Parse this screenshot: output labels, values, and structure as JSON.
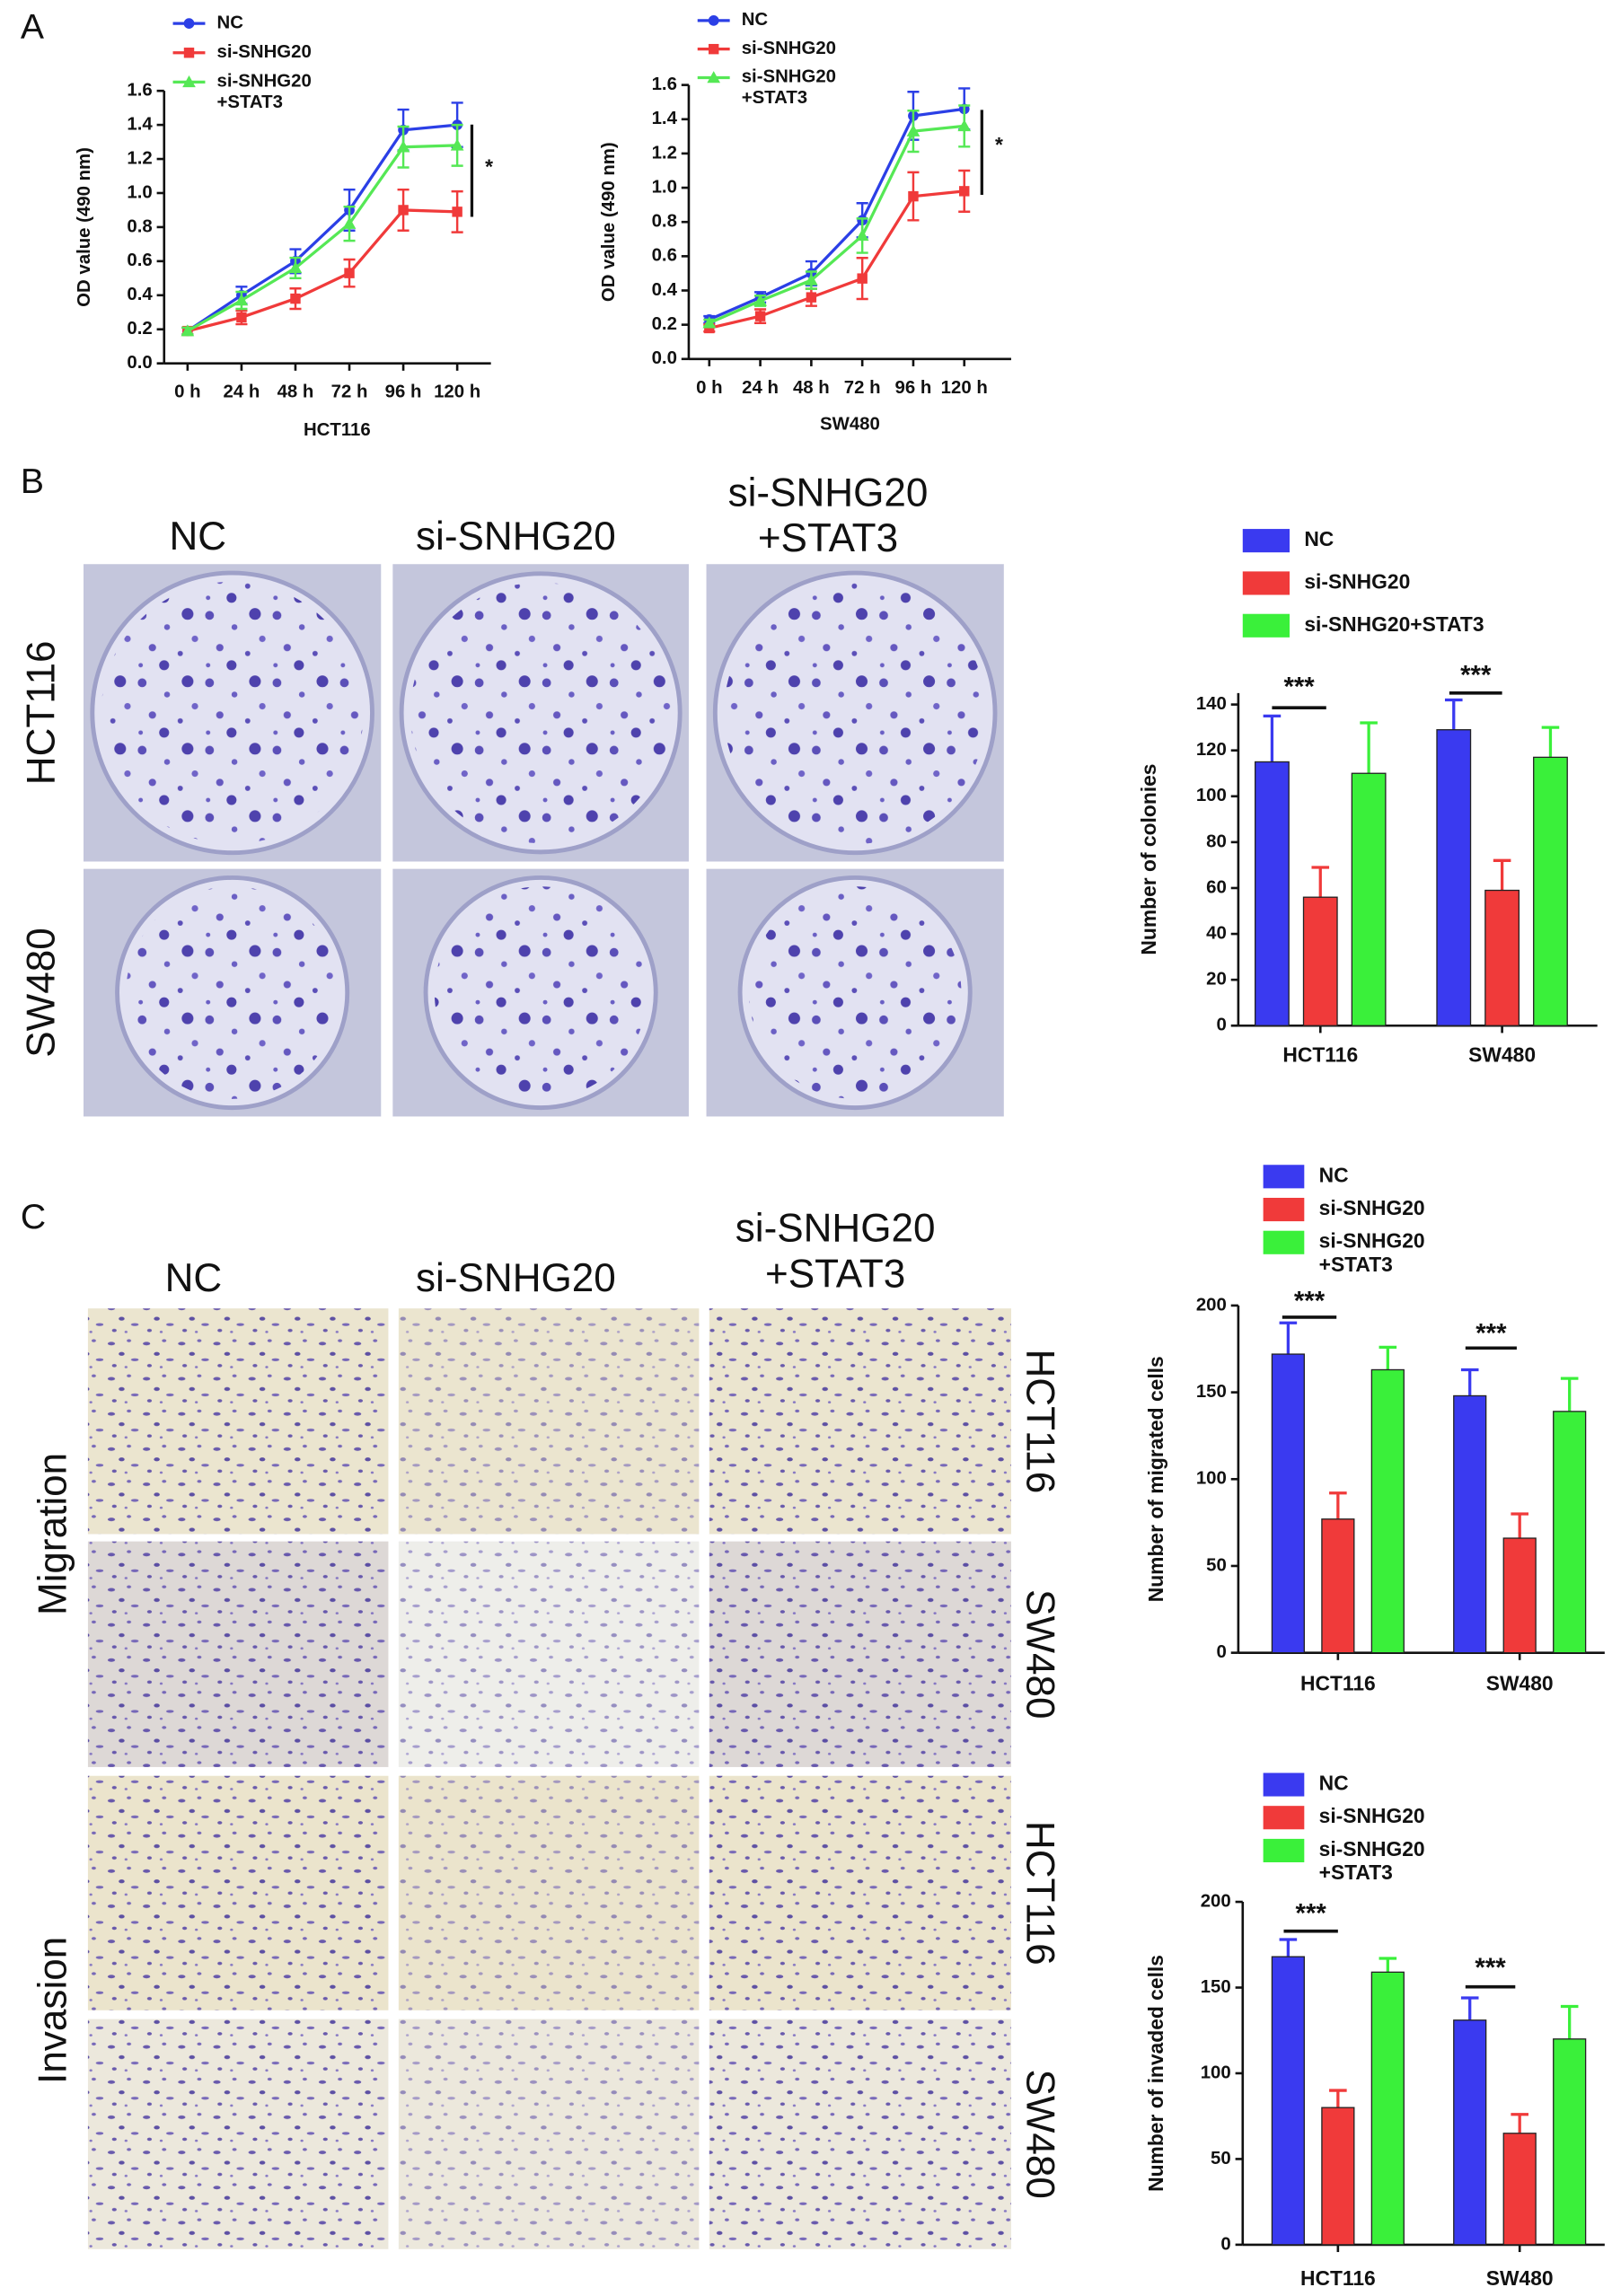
{
  "panel_labels": [
    "A",
    "B",
    "C"
  ],
  "colony": {
    "columns": [
      "NC",
      "si-SNHG20",
      "si-SNHG20\n+STAT3"
    ],
    "rows": [
      "HCT116",
      "SW480"
    ]
  },
  "transwell": {
    "columns": [
      "NC",
      "si-SNHG20",
      "si-SNHG20\n+STAT3"
    ],
    "groups": [
      "Migration",
      "Invasion"
    ],
    "rows": [
      "HCT116",
      "SW480",
      "HCT116",
      "SW480"
    ]
  },
  "chart_data": [
    {
      "type": "line",
      "xlabel": "HCT116",
      "ylabel": "OD value (490 nm)",
      "categories": [
        "0 h",
        "24 h",
        "48 h",
        "72 h",
        "96 h",
        "120 h"
      ],
      "ylim": [
        0,
        1.6
      ],
      "yticks": [
        {
          "value": 0,
          "label": "0.0"
        },
        0.2,
        0.4,
        0.6,
        0.8,
        {
          "value": 1,
          "label": "1.0"
        },
        1.2,
        1.4,
        1.6
      ],
      "series": [
        {
          "name": "NC",
          "color": "#2b3fe6",
          "values": [
            0.19,
            0.4,
            0.6,
            0.9,
            1.37,
            1.4
          ],
          "errors": [
            0.02,
            0.05,
            0.07,
            0.12,
            0.12,
            0.13
          ]
        },
        {
          "name": "si-SNHG20",
          "color": "#f03a3a",
          "values": [
            0.19,
            0.27,
            0.38,
            0.53,
            0.9,
            0.89
          ],
          "errors": [
            0.02,
            0.04,
            0.06,
            0.08,
            0.12,
            0.12
          ]
        },
        {
          "name": "si-SNHG20\n+STAT3",
          "color": "#55e855",
          "values": [
            0.19,
            0.37,
            0.56,
            0.82,
            1.27,
            1.28
          ],
          "errors": [
            0.02,
            0.05,
            0.06,
            0.1,
            0.12,
            0.12
          ]
        }
      ],
      "annotations": [
        "*"
      ]
    },
    {
      "type": "line",
      "xlabel": "SW480",
      "ylabel": "OD value (490 nm)",
      "categories": [
        "0 h",
        "24 h",
        "48 h",
        "72 h",
        "96 h",
        "120 h"
      ],
      "ylim": [
        0,
        1.6
      ],
      "yticks": [
        {
          "value": 0,
          "label": "0.0"
        },
        0.2,
        0.4,
        0.6,
        0.8,
        {
          "value": 1,
          "label": "1.0"
        },
        1.2,
        1.4,
        1.6
      ],
      "series": [
        {
          "name": "NC",
          "color": "#2b3fe6",
          "values": [
            0.23,
            0.36,
            0.5,
            0.81,
            1.42,
            1.46
          ],
          "errors": [
            0.02,
            0.03,
            0.07,
            0.1,
            0.14,
            0.12
          ]
        },
        {
          "name": "si-SNHG20",
          "color": "#f03a3a",
          "values": [
            0.18,
            0.25,
            0.36,
            0.47,
            0.95,
            0.98
          ],
          "errors": [
            0.02,
            0.04,
            0.05,
            0.12,
            0.14,
            0.12
          ]
        },
        {
          "name": "si-SNHG20\n+STAT3",
          "color": "#55e855",
          "values": [
            0.21,
            0.34,
            0.46,
            0.72,
            1.33,
            1.36
          ],
          "errors": [
            0.02,
            0.03,
            0.05,
            0.1,
            0.12,
            0.12
          ]
        }
      ],
      "annotations": [
        "*"
      ]
    },
    {
      "type": "bar",
      "ylabel": "Number of colonies",
      "categories": [
        "HCT116",
        "SW480"
      ],
      "ylim": [
        0,
        145
      ],
      "yticks": [
        0,
        20,
        40,
        60,
        80,
        100,
        120,
        140
      ],
      "series": [
        {
          "name": "NC",
          "color": "#3a3af0",
          "values": [
            115,
            129
          ],
          "errors": [
            20,
            13
          ]
        },
        {
          "name": "si-SNHG20",
          "color": "#f03a3a",
          "values": [
            56,
            59
          ],
          "errors": [
            13,
            13
          ]
        },
        {
          "name": "si-SNHG20+STAT3",
          "color": "#3af03a",
          "values": [
            110,
            117
          ],
          "errors": [
            22,
            13
          ]
        }
      ],
      "annotations": [
        "***",
        "***"
      ]
    },
    {
      "type": "bar",
      "ylabel": "Number of migrated cells",
      "categories": [
        "HCT116",
        "SW480"
      ],
      "ylim": [
        0,
        200
      ],
      "yticks": [
        0,
        50,
        100,
        150,
        200
      ],
      "series": [
        {
          "name": "NC",
          "color": "#3a3af0",
          "values": [
            172,
            148
          ],
          "errors": [
            18,
            15
          ]
        },
        {
          "name": "si-SNHG20",
          "color": "#f03a3a",
          "values": [
            77,
            66
          ],
          "errors": [
            15,
            14
          ]
        },
        {
          "name": "si-SNHG20\n+STAT3",
          "color": "#3af03a",
          "values": [
            163,
            139
          ],
          "errors": [
            13,
            19
          ]
        }
      ],
      "annotations": [
        "***",
        "***"
      ]
    },
    {
      "type": "bar",
      "ylabel": "Number of invaded cells",
      "categories": [
        "HCT116",
        "SW480"
      ],
      "ylim": [
        0,
        200
      ],
      "yticks": [
        0,
        50,
        100,
        150,
        200
      ],
      "series": [
        {
          "name": "NC",
          "color": "#3a3af0",
          "values": [
            168,
            131
          ],
          "errors": [
            10,
            13
          ]
        },
        {
          "name": "si-SNHG20",
          "color": "#f03a3a",
          "values": [
            80,
            65
          ],
          "errors": [
            10,
            11
          ]
        },
        {
          "name": "si-SNHG20\n+STAT3",
          "color": "#3af03a",
          "values": [
            159,
            120
          ],
          "errors": [
            8,
            19
          ]
        }
      ],
      "annotations": [
        "***",
        "***"
      ]
    }
  ]
}
